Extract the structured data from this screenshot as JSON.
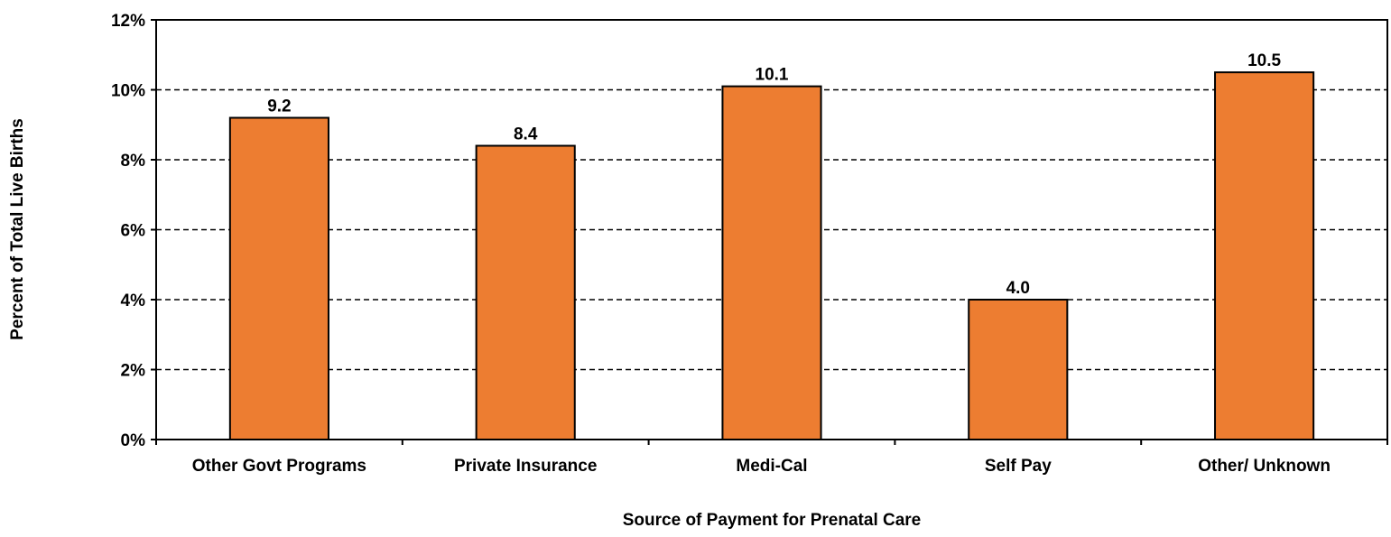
{
  "chart_data": {
    "type": "bar",
    "categories": [
      "Other Govt Programs",
      "Private Insurance",
      "Medi-Cal",
      "Self Pay",
      "Other/ Unknown"
    ],
    "values": [
      9.2,
      8.4,
      10.1,
      4.0,
      10.5
    ],
    "data_labels": [
      "9.2",
      "8.4",
      "10.1",
      "4.0",
      "10.5"
    ],
    "xlabel": "Source of Payment for Prenatal Care",
    "ylabel": "Percent of Total Live Births",
    "ylim": [
      0,
      12
    ],
    "yticks": [
      0,
      2,
      4,
      6,
      8,
      10,
      12
    ],
    "ytick_labels": [
      "0%",
      "2%",
      "4%",
      "6%",
      "8%",
      "10%",
      "12%"
    ],
    "grid": true,
    "grid_style": "dashed",
    "bar_color": "#ED7D31",
    "bar_edge_color": "#000000"
  }
}
